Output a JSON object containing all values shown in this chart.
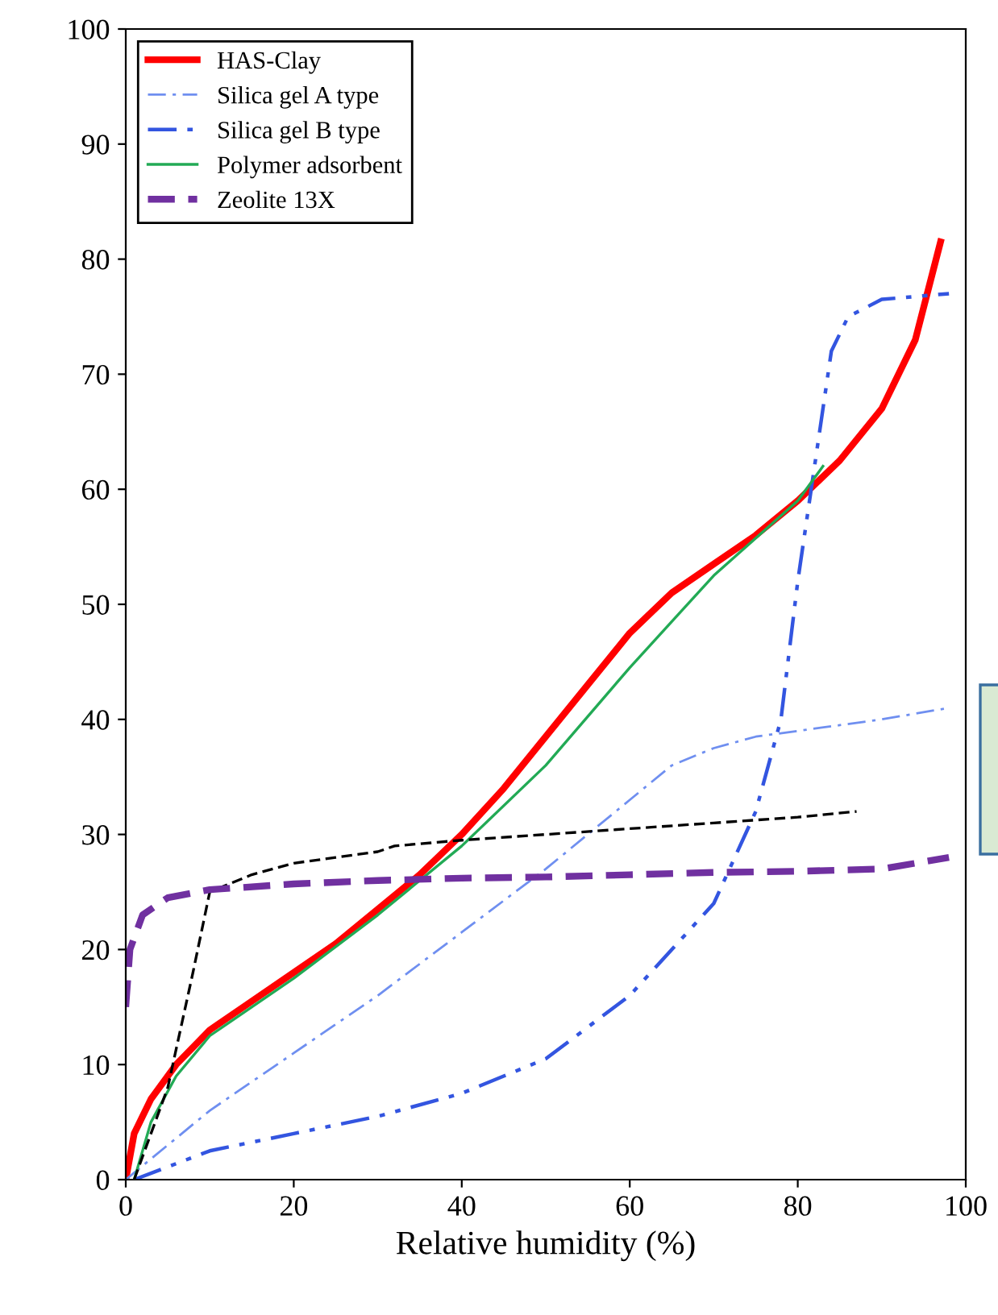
{
  "chart_data": {
    "type": "line",
    "xlabel": "Relative humidity (%)",
    "xlim": [
      0,
      100
    ],
    "xticks": [
      0,
      20,
      40,
      60,
      80,
      100
    ],
    "ylim": [
      0,
      100
    ],
    "yticks": [
      0,
      10,
      20,
      30,
      40,
      50,
      60,
      70,
      80,
      90,
      100
    ],
    "grid": false,
    "legend": "top left",
    "marker": "none",
    "series": [
      {
        "name": "HAS-Clay",
        "color": "#ff0000",
        "line_style": "solid",
        "x": [
          0,
          1,
          3,
          6,
          10,
          15,
          20,
          25,
          30,
          35,
          40,
          45,
          50,
          55,
          60,
          65,
          70,
          75,
          80,
          85,
          90,
          94,
          97
        ],
        "values": [
          0,
          4,
          7,
          10,
          13,
          15.5,
          18,
          20.5,
          23.5,
          26.5,
          30,
          34,
          38.5,
          43,
          47.5,
          51,
          53.5,
          56,
          59,
          62.5,
          67,
          73,
          81.5
        ]
      },
      {
        "name": "Silica gel A type",
        "color": "#6f8ff0",
        "line_style": "dashdot",
        "x": [
          0,
          10,
          20,
          30,
          40,
          50,
          60,
          65,
          70,
          75,
          80,
          90,
          98
        ],
        "values": [
          0,
          6,
          11,
          16,
          21.5,
          27,
          33,
          36,
          37.5,
          38.5,
          39,
          40,
          41
        ]
      },
      {
        "name": "Silica gel B type",
        "color": "#3355e0",
        "line_style": "dashdotdot",
        "x": [
          1,
          10,
          20,
          30,
          40,
          50,
          60,
          70,
          75,
          78,
          80,
          82,
          84,
          86,
          90,
          98
        ],
        "values": [
          0,
          2.5,
          4,
          5.5,
          7.5,
          10.5,
          16,
          24,
          32,
          40,
          52,
          62,
          72,
          75,
          76.5,
          77
        ]
      },
      {
        "name": "Polymer adsorbent",
        "color": "#22aa55",
        "line_style": "solid",
        "x": [
          1,
          3,
          6,
          10,
          20,
          30,
          40,
          50,
          60,
          70,
          80,
          83
        ],
        "values": [
          0,
          5,
          9,
          12.5,
          17.5,
          23,
          29,
          36,
          44.5,
          52.5,
          59,
          62
        ]
      },
      {
        "color": "#000000",
        "line_style": "dashed",
        "x": [
          1,
          5,
          8,
          10,
          15,
          20,
          25,
          30,
          32,
          40,
          50,
          60,
          70,
          80,
          87
        ],
        "values": [
          0,
          8,
          18,
          25,
          26.5,
          27.5,
          28,
          28.5,
          29,
          29.5,
          30,
          30.5,
          31,
          31.5,
          32
        ]
      },
      {
        "name": "Zeolite 13X",
        "color": "#7030a0",
        "line_style": "dashed",
        "x": [
          0,
          0.5,
          2,
          5,
          10,
          20,
          30,
          40,
          50,
          60,
          70,
          80,
          90,
          98
        ],
        "values": [
          15,
          20,
          23,
          24.5,
          25.2,
          25.7,
          26,
          26.2,
          26.3,
          26.5,
          26.7,
          26.8,
          27,
          28
        ]
      }
    ]
  }
}
